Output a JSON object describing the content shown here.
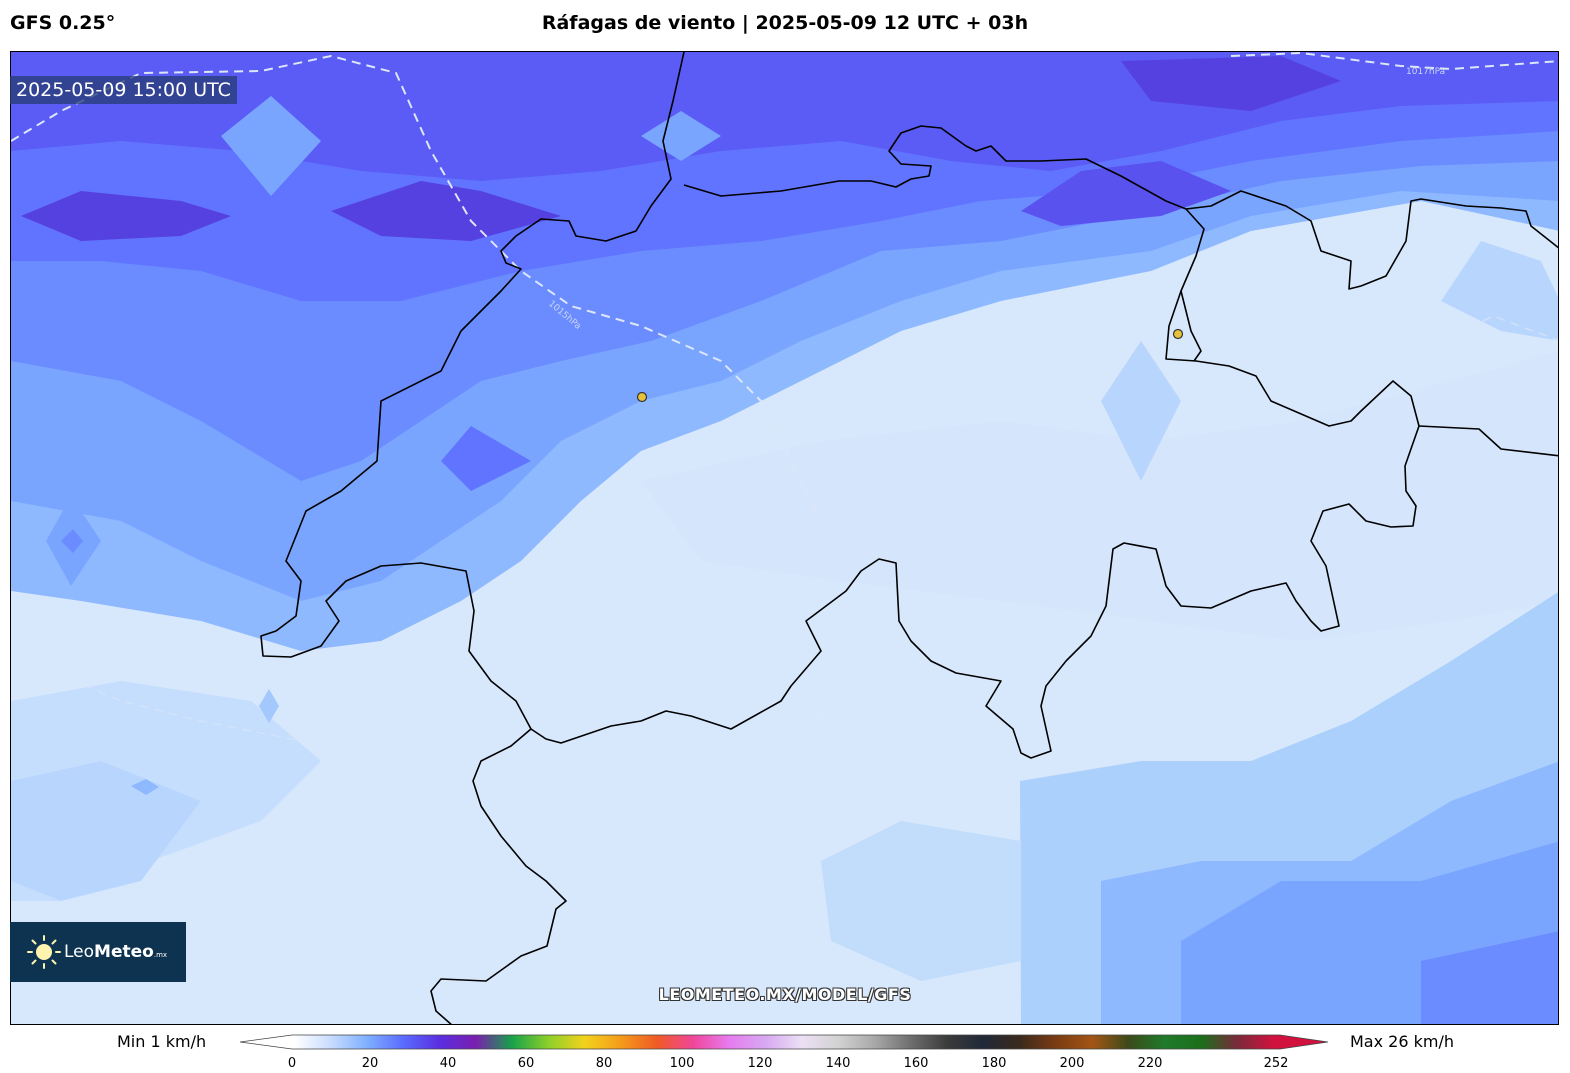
{
  "header": {
    "model": "GFS 0.25°",
    "title": "Ráfagas de viento | 2025-05-09 12 UTC + 03h"
  },
  "map": {
    "valid_time": "2025-05-09 15:00 UTC",
    "isobar_labels": [
      "1015hPa",
      "1017hPa"
    ],
    "isobar_color": "#dce6f7",
    "border_color": "#000000",
    "city_marker_color": "#e6c23a",
    "watermark": "LEOMETEO.MX/MODEL/GFS"
  },
  "logo": {
    "brand_light": "Leo",
    "brand_bold": "Meteo",
    "brand_suffix": ".mx"
  },
  "colorbar": {
    "min_label": "Min 1 km/h",
    "max_label": "Max 26 km/h",
    "ticks": [
      "0",
      "20",
      "40",
      "60",
      "80",
      "100",
      "120",
      "140",
      "160",
      "180",
      "200",
      "220",
      "252"
    ],
    "palette": [
      "#ffffff",
      "#c9dcff",
      "#7fb0ff",
      "#5a6cff",
      "#5a2fe0",
      "#7a1fb0",
      "#17a24a",
      "#8ccf2a",
      "#f2d21d",
      "#f59b1b",
      "#ef5a25",
      "#f0469a",
      "#e67cf0",
      "#d7a9f2",
      "#ece0f5",
      "#d2d2d2",
      "#a8a8a8",
      "#6e6e6e",
      "#3b3b3b",
      "#202838",
      "#3b2a1c",
      "#7a3b12",
      "#a35515",
      "#3c4a1b",
      "#1f7a2a",
      "#1b6f1b",
      "#7a2a3a",
      "#d1123f"
    ]
  }
}
